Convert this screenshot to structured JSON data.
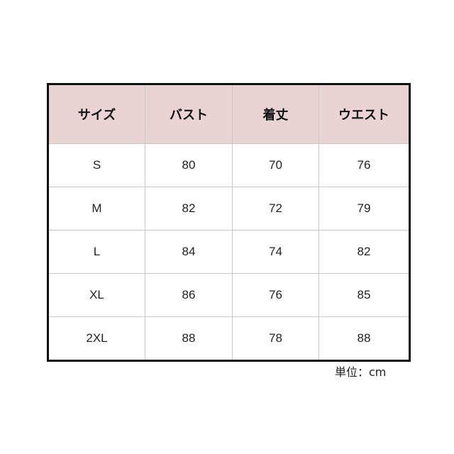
{
  "table": {
    "headers": [
      "サイズ",
      "バスト",
      "着丈",
      "ウエスト"
    ],
    "rows": [
      [
        "S",
        "80",
        "70",
        "76"
      ],
      [
        "M",
        "82",
        "72",
        "79"
      ],
      [
        "L",
        "84",
        "74",
        "82"
      ],
      [
        "XL",
        "86",
        "76",
        "85"
      ],
      [
        "2XL",
        "88",
        "78",
        "88"
      ]
    ]
  },
  "unit_label": "単位：cm",
  "colors": {
    "header_bg": "#e9d3d3",
    "border": "#111111"
  }
}
